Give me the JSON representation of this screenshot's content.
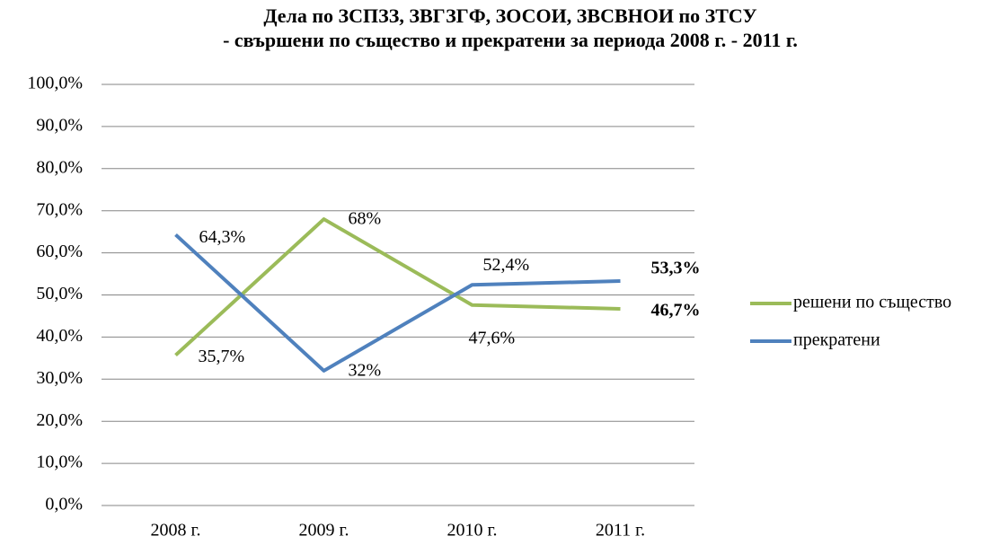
{
  "chart_data": {
    "type": "line",
    "title": [
      "Дела по ЗСПЗЗ, ЗВГЗГФ, ЗОСОИ, ЗВСВНОИ по ЗТСУ",
      "- свършени по същество и прекратени  за периода 2008 г. - 2011 г."
    ],
    "categories": [
      "2008 г.",
      "2009 г.",
      "2010 г.",
      "2011 г."
    ],
    "series": [
      {
        "name": "решени по същество",
        "color": "#9bbb59",
        "values": [
          35.7,
          68,
          47.6,
          46.7
        ],
        "value_labels": [
          "35,7%",
          "68%",
          "47,6%",
          "46,7%"
        ]
      },
      {
        "name": "прекратени",
        "color": "#4f81bd",
        "values": [
          64.3,
          32,
          52.4,
          53.3
        ],
        "value_labels": [
          "64,3%",
          "32%",
          "52,4%",
          "53,3%"
        ]
      }
    ],
    "ylim": [
      0,
      100
    ],
    "yticks": [
      {
        "value": 0,
        "label": "0,0%"
      },
      {
        "value": 10,
        "label": "10,0%"
      },
      {
        "value": 20,
        "label": "20,0%"
      },
      {
        "value": 30,
        "label": "30,0%"
      },
      {
        "value": 40,
        "label": "40,0%"
      },
      {
        "value": 50,
        "label": "50,0%"
      },
      {
        "value": 60,
        "label": "60,0%"
      },
      {
        "value": 70,
        "label": "70,0%"
      },
      {
        "value": 80,
        "label": "80,0%"
      },
      {
        "value": 90,
        "label": "90,0%"
      },
      {
        "value": 100,
        "label": "100,0%"
      }
    ],
    "grid": true,
    "legend": "right"
  }
}
